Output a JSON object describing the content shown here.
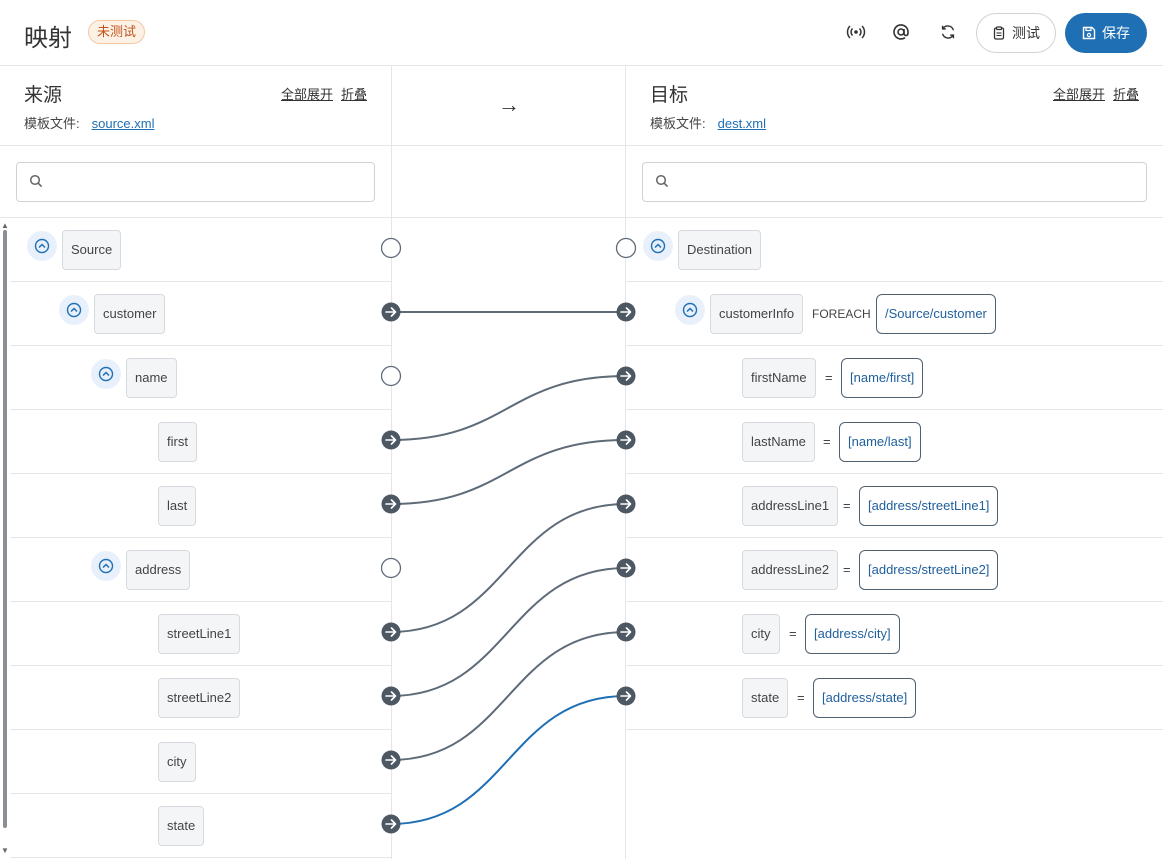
{
  "header": {
    "title": "映射",
    "badge": "未测试",
    "test_label": "测试",
    "save_label": "保存"
  },
  "source": {
    "heading": "来源",
    "expand_all": "全部展开",
    "collapse": "折叠",
    "template_label": "模板文件:",
    "template_file": "source.xml",
    "search_placeholder": "",
    "nodes": [
      "Source",
      "customer",
      "name",
      "first",
      "last",
      "address",
      "streetLine1",
      "streetLine2",
      "city",
      "state"
    ]
  },
  "middle": {
    "arrow": "→"
  },
  "target": {
    "heading": "目标",
    "expand_all": "全部展开",
    "collapse": "折叠",
    "template_label": "模板文件:",
    "template_file": "dest.xml",
    "search_placeholder": "",
    "nodes": [
      "Destination",
      "customerInfo",
      "firstName",
      "lastName",
      "addressLine1",
      "addressLine2",
      "city",
      "state"
    ],
    "foreach_label": "FOREACH",
    "foreach_expr": "/Source/customer",
    "equals": "=",
    "exprs": [
      "[name/first]",
      "[name/last]",
      "[address/streetLine1]",
      "[address/streetLine2]",
      "[address/city]",
      "[address/state]"
    ]
  },
  "colors": {
    "accent": "#1f6fb5",
    "link_line": "#5f6b78",
    "active_line": "#1f6fb5",
    "badge": "#c0541c"
  }
}
